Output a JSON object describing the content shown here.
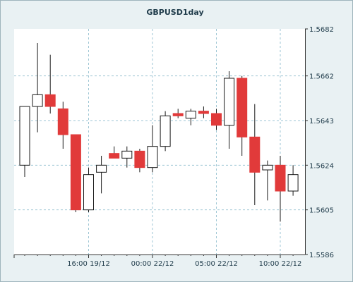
{
  "chart_data": {
    "type": "candlestick",
    "title": "GBPUSD1day",
    "ylim": [
      1.5586,
      1.5682
    ],
    "y_ticks": [
      1.5586,
      1.5605,
      1.5624,
      1.5643,
      1.5662,
      1.5682
    ],
    "y_tick_labels": [
      "1.5586",
      "1.5605",
      "1.5624",
      "1.5643",
      "1.5662",
      "1.5682"
    ],
    "x_tick_labels": [
      {
        "label": "16:00 19/12",
        "index": 5
      },
      {
        "label": "00:00 22/12",
        "index": 10
      },
      {
        "label": "05:00 22/12",
        "index": 15
      },
      {
        "label": "10:00 22/12",
        "index": 20
      }
    ],
    "grid": true,
    "colors": {
      "up": "#ffffff",
      "down": "#e13a3a",
      "outline": "#1a1a1a",
      "grid": "#9ec6d4",
      "plot_bg": "#ffffff"
    },
    "candles": [
      {
        "open": 1.5624,
        "high": 1.5649,
        "low": 1.5619,
        "close": 1.5649
      },
      {
        "open": 1.5649,
        "high": 1.5676,
        "low": 1.5638,
        "close": 1.5654
      },
      {
        "open": 1.5654,
        "high": 1.5671,
        "low": 1.5646,
        "close": 1.5649
      },
      {
        "open": 1.5648,
        "high": 1.5651,
        "low": 1.5631,
        "close": 1.5637
      },
      {
        "open": 1.5637,
        "high": 1.5637,
        "low": 1.5604,
        "close": 1.5605
      },
      {
        "open": 1.5605,
        "high": 1.5623,
        "low": 1.5604,
        "close": 1.562
      },
      {
        "open": 1.5621,
        "high": 1.5628,
        "low": 1.5612,
        "close": 1.5624
      },
      {
        "open": 1.5629,
        "high": 1.5632,
        "low": 1.5627,
        "close": 1.5627
      },
      {
        "open": 1.5627,
        "high": 1.5632,
        "low": 1.5623,
        "close": 1.563
      },
      {
        "open": 1.563,
        "high": 1.5631,
        "low": 1.5621,
        "close": 1.5623
      },
      {
        "open": 1.5623,
        "high": 1.5641,
        "low": 1.5621,
        "close": 1.5632
      },
      {
        "open": 1.5632,
        "high": 1.5647,
        "low": 1.563,
        "close": 1.5645
      },
      {
        "open": 1.5646,
        "high": 1.5648,
        "low": 1.5644,
        "close": 1.5645
      },
      {
        "open": 1.5644,
        "high": 1.5648,
        "low": 1.5641,
        "close": 1.5647
      },
      {
        "open": 1.5647,
        "high": 1.5649,
        "low": 1.5644,
        "close": 1.5646
      },
      {
        "open": 1.5646,
        "high": 1.5648,
        "low": 1.5639,
        "close": 1.5641
      },
      {
        "open": 1.5641,
        "high": 1.5664,
        "low": 1.5631,
        "close": 1.5661
      },
      {
        "open": 1.5661,
        "high": 1.5662,
        "low": 1.5628,
        "close": 1.5636
      },
      {
        "open": 1.5636,
        "high": 1.565,
        "low": 1.5607,
        "close": 1.5621
      },
      {
        "open": 1.5622,
        "high": 1.5626,
        "low": 1.5609,
        "close": 1.5624
      },
      {
        "open": 1.5624,
        "high": 1.5628,
        "low": 1.56,
        "close": 1.5613
      },
      {
        "open": 1.5613,
        "high": 1.5624,
        "low": 1.5611,
        "close": 1.562
      }
    ]
  }
}
